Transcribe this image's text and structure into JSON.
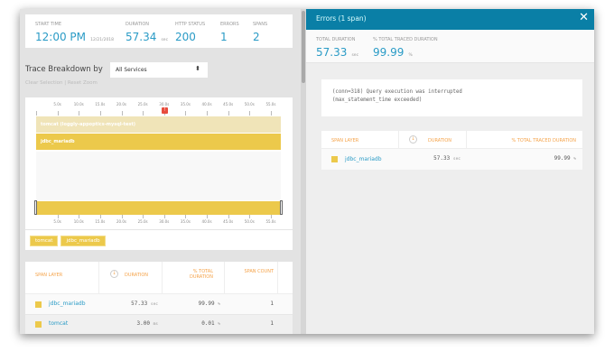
{
  "summary": {
    "start_time_label": "START TIME",
    "start_time": "12:00 PM",
    "start_date": "12/21/2018",
    "duration_label": "DURATION",
    "duration": "57.34",
    "duration_unit": "sec",
    "http_status_label": "HTTP STATUS",
    "http_status": "200",
    "errors_label": "ERRORS",
    "errors": "1",
    "spans_label": "SPANS",
    "spans": "2"
  },
  "breakdown": {
    "label": "Trace Breakdown by",
    "selected": "All Services",
    "clear_selection": "Clear Selection",
    "reset_zoom": "Reset Zoom"
  },
  "timeline": {
    "ticks": [
      "5.0s",
      "10.0s",
      "15.0s",
      "20.0s",
      "25.0s",
      "30.0s",
      "35.0s",
      "40.0s",
      "45.0s",
      "50.0s",
      "55.0s"
    ],
    "tick_values": [
      5,
      10,
      15,
      20,
      25,
      30,
      35,
      40,
      45,
      50,
      55
    ],
    "total_seconds": 57.34,
    "error_marker_at": 30,
    "spans": [
      {
        "label": "tomcat (loggly-appoptics-mysql-test)",
        "start": 0,
        "end": 57.34,
        "color": "#f0e4b8"
      },
      {
        "label": "jdbc_mariadb",
        "start": 0,
        "end": 57.33,
        "color": "#ecc94b"
      }
    ],
    "legend": [
      "tomcat",
      "jdbc_mariadb"
    ]
  },
  "table": {
    "headers": [
      "SPAN LAYER",
      "DURATION",
      "% TOTAL DURATION",
      "SPAN COUNT"
    ],
    "rows": [
      {
        "layer": "jdbc_mariadb",
        "duration": "57.33",
        "duration_unit": "sec",
        "pct": "99.99",
        "pct_unit": "%",
        "count": "1"
      },
      {
        "layer": "tomcat",
        "duration": "3.00",
        "duration_unit": "ms",
        "pct": "0.01",
        "pct_unit": "%",
        "count": "1"
      }
    ]
  },
  "errors_panel": {
    "title": "Errors (1 span)",
    "total_duration_label": "TOTAL DURATION",
    "total_duration": "57.33",
    "total_duration_unit": "sec",
    "pct_label": "% TOTAL TRACED DURATION",
    "pct": "99.99",
    "pct_unit": "%",
    "message_line1": "(conn=318) Query execution was interrupted",
    "message_line2": "(max_statement_time exceeded)",
    "headers": [
      "SPAN LAYER",
      "DURATION",
      "% TOTAL TRACED DURATION"
    ],
    "row": {
      "layer": "jdbc_mariadb",
      "duration": "57.33",
      "duration_unit": "sec",
      "pct": "99.99",
      "pct_unit": "%"
    }
  },
  "colors": {
    "accent": "#2a9bc6",
    "header": "#0a7fa6",
    "span": "#ecc94b",
    "error": "#e84c3d"
  }
}
